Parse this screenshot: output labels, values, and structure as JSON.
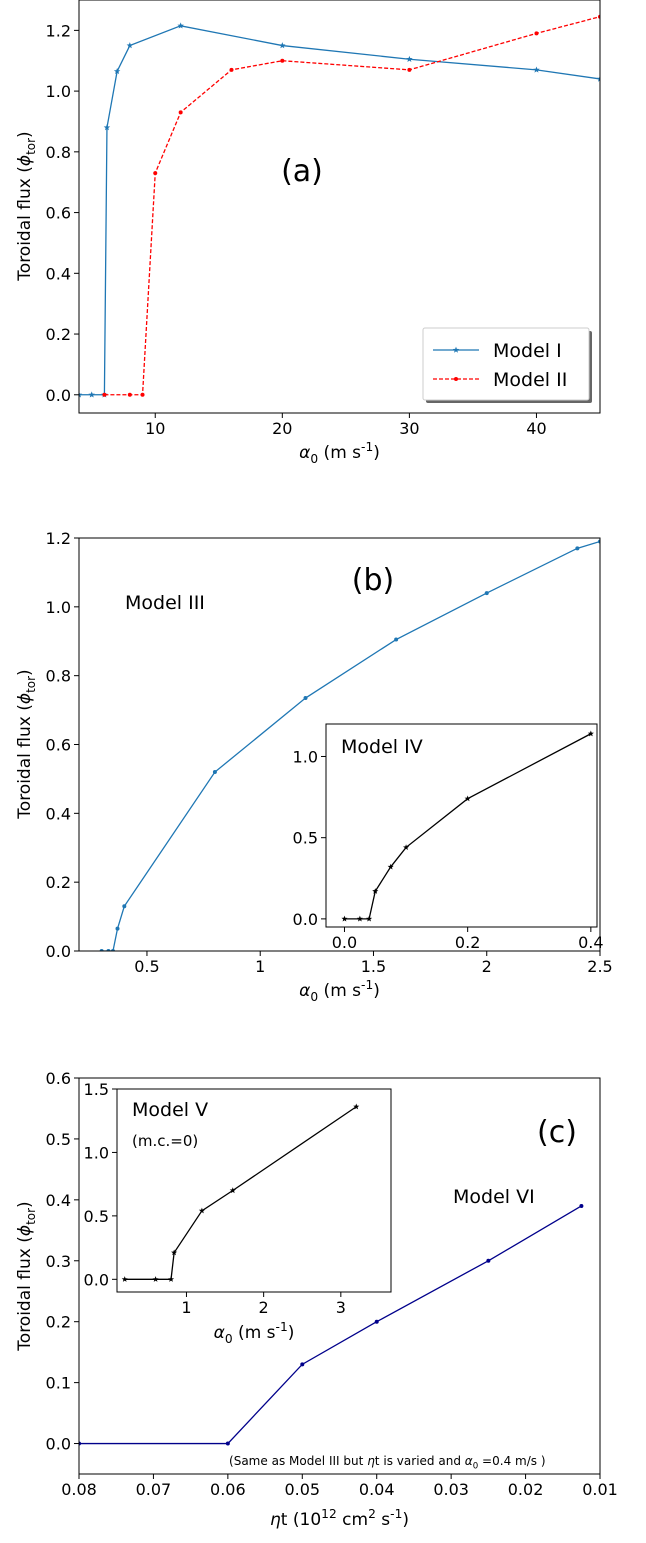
{
  "colors": {
    "model_I": "#1f77b4",
    "model_II": "#ff0000",
    "model_III": "#1f77b4",
    "model_VI": "#00008b",
    "inset": "#000000"
  },
  "chart_data": [
    {
      "id": "a",
      "type": "line",
      "panel_label": "(a)",
      "xlabel": "α₀ (m s⁻¹)",
      "ylabel": "Toroidal flux (ϕtor)",
      "xlim": [
        4,
        45
      ],
      "ylim": [
        -0.06,
        1.3
      ],
      "xticks": [
        10,
        20,
        30,
        40
      ],
      "yticks": [
        0.0,
        0.2,
        0.4,
        0.6,
        0.8,
        1.0,
        1.2
      ],
      "legend": "lower-right",
      "series": [
        {
          "name": "Model I",
          "style": "solid",
          "color": "#1f77b4",
          "marker": "star",
          "x": [
            4,
            5,
            6,
            6.2,
            7,
            8,
            12,
            20,
            30,
            40,
            45
          ],
          "y": [
            0.0,
            0.0,
            0.0,
            0.88,
            1.065,
            1.15,
            1.215,
            1.15,
            1.105,
            1.07,
            1.04
          ]
        },
        {
          "name": "Model II",
          "style": "dashed",
          "color": "#ff0000",
          "marker": "dot",
          "x": [
            6,
            8,
            9,
            10,
            12,
            16,
            20,
            30,
            40,
            45
          ],
          "y": [
            0.0,
            0.0,
            0.0,
            0.73,
            0.93,
            1.07,
            1.1,
            1.07,
            1.19,
            1.245
          ]
        }
      ]
    },
    {
      "id": "b",
      "type": "line",
      "panel_label": "(b)",
      "model_label": "Model III",
      "xlabel": "α₀ (m s⁻¹)",
      "ylabel": "Toroidal flux (ϕtor)",
      "xlim": [
        0.2,
        2.5
      ],
      "ylim": [
        0,
        1.2
      ],
      "xticks": [
        0.5,
        1.0,
        1.5,
        2.0,
        2.5
      ],
      "yticks": [
        0.0,
        0.2,
        0.4,
        0.6,
        0.8,
        1.0,
        1.2
      ],
      "series": [
        {
          "name": "Model III",
          "color": "#1f77b4",
          "marker": "dot",
          "x": [
            0.3,
            0.33,
            0.35,
            0.37,
            0.4,
            0.8,
            1.2,
            1.6,
            2.0,
            2.4,
            2.5
          ],
          "y": [
            0.0,
            0.0,
            0.0,
            0.065,
            0.13,
            0.52,
            0.735,
            0.905,
            1.04,
            1.17,
            1.19
          ]
        }
      ],
      "inset": {
        "model_label": "Model IV",
        "xlim": [
          -0.03,
          0.41
        ],
        "ylim": [
          -0.05,
          1.2
        ],
        "xticks": [
          0.0,
          0.2,
          0.4
        ],
        "xtick_labels": [
          "0.0",
          "0.2",
          "0.4"
        ],
        "yticks": [
          0.0,
          0.5,
          1.0
        ],
        "series": [
          {
            "name": "Model IV",
            "color": "#000000",
            "marker": "star",
            "x": [
              0.0,
              0.025,
              0.04,
              0.05,
              0.075,
              0.1,
              0.2,
              0.4
            ],
            "y": [
              0.0,
              0.0,
              0.0,
              0.17,
              0.32,
              0.44,
              0.74,
              1.14
            ]
          }
        ]
      }
    },
    {
      "id": "c",
      "type": "line",
      "panel_label": "(c)",
      "model_label": "Model VI",
      "annotation": "(Same as Model III but ηt is varied and α₀ =0.4 m/s )",
      "xlabel": "ηt (10¹² cm² s⁻¹)",
      "ylabel": "Toroidal flux (ϕtor)",
      "xlim": [
        0.08,
        0.01
      ],
      "ylim": [
        -0.05,
        0.6
      ],
      "xticks": [
        0.08,
        0.07,
        0.06,
        0.05,
        0.04,
        0.03,
        0.02,
        0.01
      ],
      "xtick_labels": [
        "0.08",
        "0.07",
        "0.06",
        "0.05",
        "0.04",
        "0.03",
        "0.02",
        "0.01"
      ],
      "yticks": [
        0.0,
        0.1,
        0.2,
        0.3,
        0.4,
        0.5,
        0.6
      ],
      "series": [
        {
          "name": "Model VI",
          "color": "#00008b",
          "marker": "dot",
          "x": [
            0.08,
            0.06,
            0.05,
            0.04,
            0.025,
            0.0125
          ],
          "y": [
            0.0,
            0.0,
            0.13,
            0.2,
            0.3,
            0.39
          ]
        }
      ],
      "inset": {
        "model_label": "Model V",
        "model_sublabel": "(m.c.=0)",
        "xlabel": "α₀ (m s⁻¹)",
        "xlim": [
          0.1,
          3.65
        ],
        "ylim": [
          -0.1,
          1.5
        ],
        "xticks": [
          1,
          2,
          3
        ],
        "yticks": [
          0.0,
          0.5,
          1.0,
          1.5
        ],
        "series": [
          {
            "name": "Model V",
            "color": "#000000",
            "marker": "star",
            "x": [
              0.2,
              0.6,
              0.8,
              0.84,
              1.2,
              1.6,
              3.2
            ],
            "y": [
              0.0,
              0.0,
              0.0,
              0.21,
              0.54,
              0.7,
              1.36
            ]
          }
        ]
      }
    }
  ]
}
